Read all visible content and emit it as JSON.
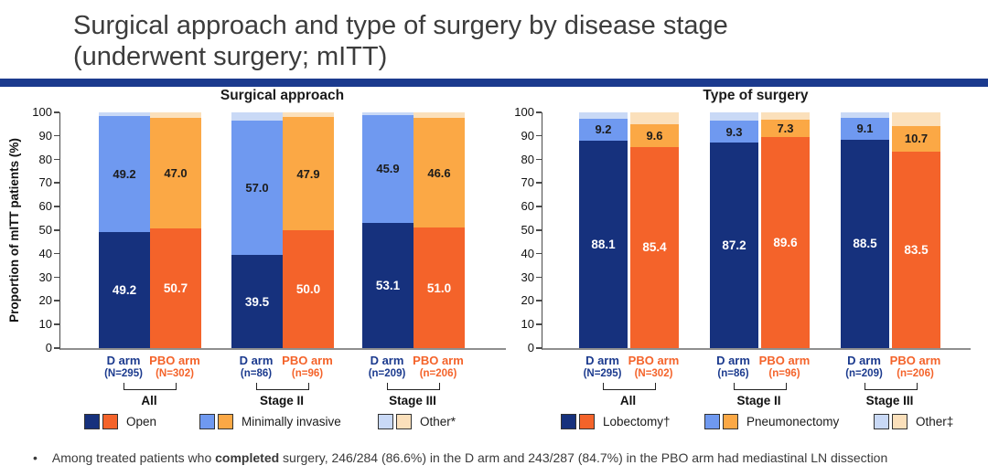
{
  "title": {
    "line1": "Surgical approach and type of surgery by disease stage",
    "line2": "(underwent surgery; mITT)"
  },
  "colors": {
    "divider_blue": "#1b3a8e",
    "d_arm_series": [
      "#16317d",
      "#6f99f0",
      "#c9d9f6"
    ],
    "pbo_arm_series": [
      "#f4632a",
      "#fba845",
      "#fbe0bb"
    ],
    "d_arm_text": "#1b3a8e",
    "pbo_arm_text": "#f4632a"
  },
  "groups": [
    {
      "name": "All",
      "d": {
        "label": "D arm",
        "n": "(N=295)"
      },
      "pbo": {
        "label": "PBO arm",
        "n": "(N=302)"
      }
    },
    {
      "name": "Stage II",
      "d": {
        "label": "D arm",
        "n": "(n=86)"
      },
      "pbo": {
        "label": "PBO arm",
        "n": "(n=96)"
      }
    },
    {
      "name": "Stage III",
      "d": {
        "label": "D arm",
        "n": "(n=209)"
      },
      "pbo": {
        "label": "PBO arm",
        "n": "(n=206)"
      }
    }
  ],
  "chart_data": [
    {
      "type": "bar",
      "stacked": true,
      "title": "Surgical approach",
      "ylabel": "Proportion of mITT patients (%)",
      "ylim": [
        0,
        100
      ],
      "yticks": [
        0,
        10,
        20,
        30,
        40,
        50,
        60,
        70,
        80,
        90,
        100
      ],
      "grid": false,
      "legend_position": "bottom",
      "categories": [
        "All D arm (N=295)",
        "All PBO arm (N=302)",
        "Stage II D arm (n=86)",
        "Stage II PBO arm (n=96)",
        "Stage III D arm (n=209)",
        "Stage III PBO arm (n=206)"
      ],
      "series": [
        {
          "name": "Open",
          "labeled": true,
          "values": [
            49.2,
            50.7,
            39.5,
            50.0,
            53.1,
            51.0
          ]
        },
        {
          "name": "Minimally invasive",
          "labeled": true,
          "values": [
            49.2,
            47.0,
            57.0,
            47.9,
            45.9,
            46.6
          ]
        },
        {
          "name": "Other*",
          "labeled": false,
          "values": [
            1.6,
            2.3,
            3.5,
            2.1,
            1.0,
            2.4
          ]
        }
      ]
    },
    {
      "type": "bar",
      "stacked": true,
      "title": "Type of surgery",
      "ylabel": "",
      "ylim": [
        0,
        100
      ],
      "yticks": [
        0,
        10,
        20,
        30,
        40,
        50,
        60,
        70,
        80,
        90,
        100
      ],
      "grid": false,
      "legend_position": "bottom",
      "categories": [
        "All D arm (N=295)",
        "All PBO arm (N=302)",
        "Stage II D arm (n=86)",
        "Stage II PBO arm (n=96)",
        "Stage III D arm (n=209)",
        "Stage III PBO arm (n=206)"
      ],
      "series": [
        {
          "name": "Lobectomy†",
          "labeled": true,
          "values": [
            88.1,
            85.4,
            87.2,
            89.6,
            88.5,
            83.5
          ]
        },
        {
          "name": "Pneumonectomy",
          "labeled": true,
          "values": [
            9.2,
            9.6,
            9.3,
            7.3,
            9.1,
            10.7
          ]
        },
        {
          "name": "Other‡",
          "labeled": false,
          "values": [
            2.7,
            5.0,
            3.5,
            3.1,
            2.4,
            5.8
          ]
        }
      ]
    }
  ],
  "footnote": {
    "bullet": "•",
    "pre": "Among treated patients who ",
    "bold": "completed",
    "post": " surgery, 246/284 (86.6%) in the D arm and 243/287 (84.7%) in the PBO arm had mediastinal LN dissection"
  }
}
